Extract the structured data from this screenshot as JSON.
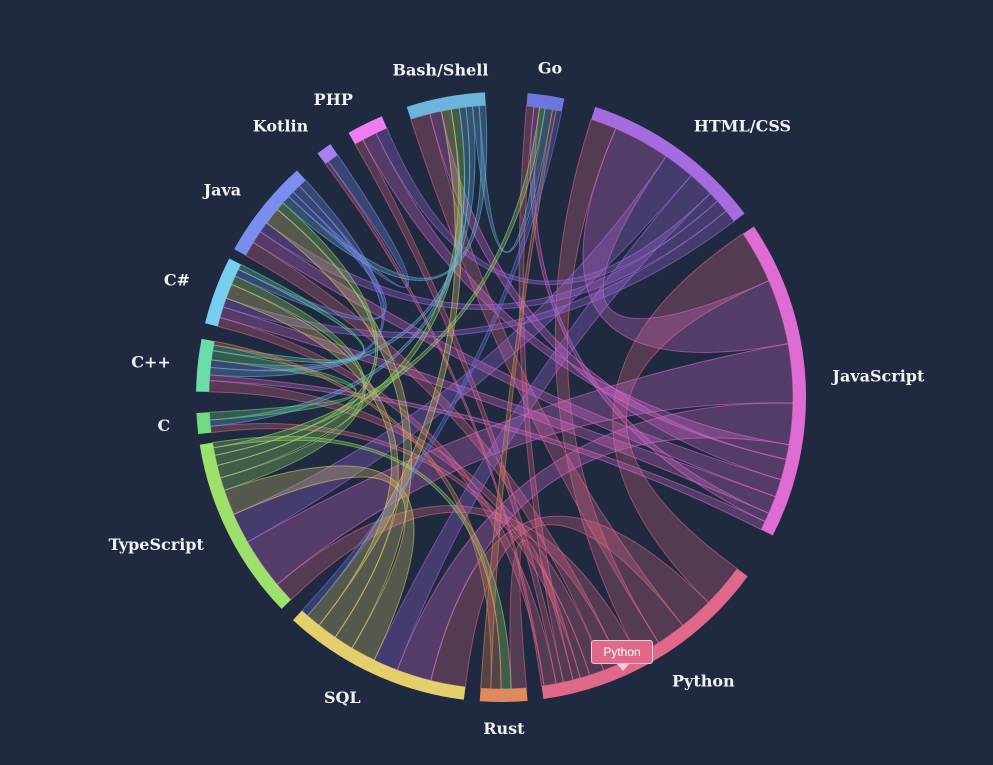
{
  "chart_data": {
    "type": "chord",
    "title": "",
    "groups": [
      {
        "name": "Python",
        "color": "#e0688a",
        "a0": 126,
        "a1": 172
      },
      {
        "name": "Rust",
        "color": "#e0895f",
        "a0": 175,
        "a1": 184
      },
      {
        "name": "SQL",
        "color": "#e3d06c",
        "a0": 187,
        "a1": 223
      },
      {
        "name": "TypeScript",
        "color": "#9ee06c",
        "a0": 226,
        "a1": 261
      },
      {
        "name": "C",
        "color": "#6fdc7f",
        "a0": 263,
        "a1": 267
      },
      {
        "name": "C++",
        "color": "#6bdcaa",
        "a0": 271,
        "a1": 281
      },
      {
        "name": "C#",
        "color": "#79cdf0",
        "a0": 284,
        "a1": 297
      },
      {
        "name": "Java",
        "color": "#7b8ef0",
        "a0": 299,
        "a1": 318
      },
      {
        "name": "Kotlin",
        "color": "#a97ef0",
        "a0": 323,
        "a1": 326
      },
      {
        "name": "PHP",
        "color": "#ee7ef0",
        "a0": 330,
        "a1": 337
      },
      {
        "name": "Bash/Shell",
        "color": "#6cb4dc",
        "a0": 342,
        "a1": 357
      },
      {
        "name": "Go",
        "color": "#6b76e0",
        "a0": 5,
        "a1": 12
      },
      {
        "name": "HTML/CSS",
        "color": "#a56ce0",
        "a0": 18,
        "a1": 53
      },
      {
        "name": "JavaScript",
        "color": "#df6cd2",
        "a0": 56,
        "a1": 117
      }
    ],
    "links": [
      [
        "Python",
        "JavaScript",
        18
      ],
      [
        "Python",
        "SQL",
        14
      ],
      [
        "Python",
        "Bash/Shell",
        12
      ],
      [
        "Python",
        "HTML/CSS",
        10
      ],
      [
        "Python",
        "TypeScript",
        8
      ],
      [
        "Python",
        "Java",
        7
      ],
      [
        "Python",
        "C++",
        6
      ],
      [
        "Python",
        "C",
        4
      ],
      [
        "Python",
        "Rust",
        3
      ],
      [
        "Python",
        "Go",
        4
      ],
      [
        "Python",
        "PHP",
        3
      ],
      [
        "Python",
        "C#",
        5
      ],
      [
        "Python",
        "Kotlin",
        1
      ],
      [
        "JavaScript",
        "HTML/CSS",
        22
      ],
      [
        "JavaScript",
        "TypeScript",
        20
      ],
      [
        "JavaScript",
        "SQL",
        14
      ],
      [
        "JavaScript",
        "PHP",
        5
      ],
      [
        "JavaScript",
        "Bash/Shell",
        7
      ],
      [
        "JavaScript",
        "Java",
        6
      ],
      [
        "JavaScript",
        "C#",
        6
      ],
      [
        "JavaScript",
        "Go",
        3
      ],
      [
        "JavaScript",
        "C++",
        3
      ],
      [
        "HTML/CSS",
        "TypeScript",
        12
      ],
      [
        "HTML/CSS",
        "SQL",
        10
      ],
      [
        "HTML/CSS",
        "PHP",
        4
      ],
      [
        "HTML/CSS",
        "Java",
        5
      ],
      [
        "HTML/CSS",
        "C#",
        5
      ],
      [
        "SQL",
        "TypeScript",
        10
      ],
      [
        "SQL",
        "Java",
        8
      ],
      [
        "SQL",
        "C#",
        8
      ],
      [
        "SQL",
        "Bash/Shell",
        6
      ],
      [
        "TypeScript",
        "C#",
        5
      ],
      [
        "TypeScript",
        "Bash/Shell",
        5
      ],
      [
        "TypeScript",
        "Java",
        4
      ],
      [
        "TypeScript",
        "Go",
        3
      ],
      [
        "TypeScript",
        "Rust",
        2
      ],
      [
        "Bash/Shell",
        "C",
        4
      ],
      [
        "Bash/Shell",
        "C++",
        4
      ],
      [
        "Bash/Shell",
        "Go",
        4
      ],
      [
        "Bash/Shell",
        "Java",
        4
      ],
      [
        "Java",
        "Kotlin",
        3
      ],
      [
        "Java",
        "C#",
        4
      ],
      [
        "Java",
        "C++",
        4
      ],
      [
        "C",
        "C++",
        5
      ],
      [
        "C++",
        "C#",
        3
      ],
      [
        "Rust",
        "C++",
        2
      ],
      [
        "Rust",
        "Go",
        2
      ],
      [
        "Go",
        "SQL",
        3
      ]
    ]
  },
  "tooltip": {
    "text": "Python",
    "color": "#e0688a"
  }
}
